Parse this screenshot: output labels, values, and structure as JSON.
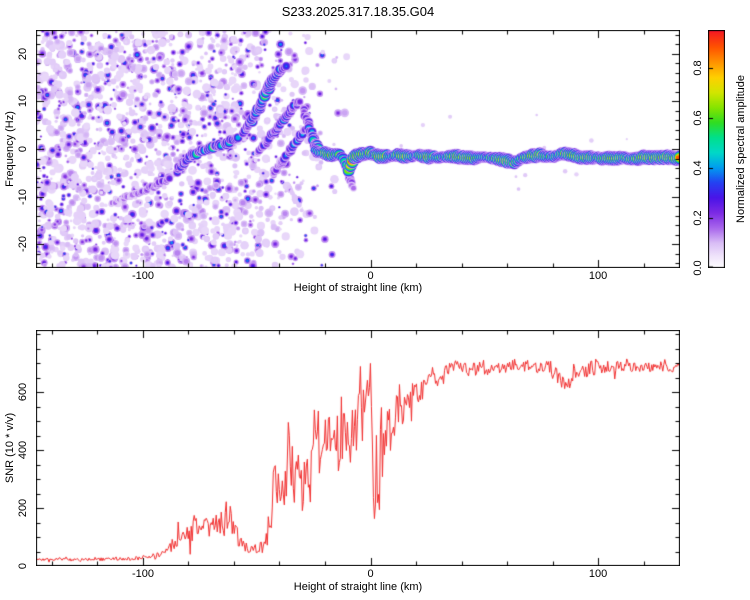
{
  "figure": {
    "title": "S233.2025.317.18.35.G04",
    "background": "#ffffff",
    "text_color": "#000000"
  },
  "chart_data": [
    {
      "type": "heatmap",
      "panel": "doppler-spectrogram",
      "xlabel": "Height of straight line (km)",
      "ylabel": "Frequency (Hz)",
      "xlim": [
        -147,
        136
      ],
      "ylim": [
        -25,
        25
      ],
      "x_major_ticks": [
        -100,
        0,
        100
      ],
      "x_minor_step": 20,
      "y_major_ticks": [
        -20,
        -10,
        0,
        10,
        20
      ],
      "y_minor_step": 2,
      "grid": false,
      "colorbar": {
        "label": "Normalized spectral amplitude",
        "ticks": [
          0.0,
          0.2,
          0.4,
          0.6,
          0.8
        ],
        "vmax_display": 0.95,
        "stops": [
          [
            0.0,
            "#ffffff"
          ],
          [
            0.05,
            "#efe2fb"
          ],
          [
            0.1,
            "#d9bdf6"
          ],
          [
            0.16,
            "#a866ec"
          ],
          [
            0.22,
            "#7c2ae4"
          ],
          [
            0.28,
            "#4a14e8"
          ],
          [
            0.34,
            "#2441f2"
          ],
          [
            0.4,
            "#009cf0"
          ],
          [
            0.46,
            "#00d8c8"
          ],
          [
            0.52,
            "#00e08c"
          ],
          [
            0.58,
            "#30dd22"
          ],
          [
            0.64,
            "#86e400"
          ],
          [
            0.7,
            "#d2e600"
          ],
          [
            0.76,
            "#ffd000"
          ],
          [
            0.82,
            "#ff9400"
          ],
          [
            0.88,
            "#ff5400"
          ],
          [
            0.94,
            "#f51e1e"
          ],
          [
            1.0,
            "#e6003c"
          ]
        ]
      },
      "noise_field": {
        "seed": 42,
        "count": 2400,
        "x_range": [
          -147,
          -8
        ],
        "x_full": -65,
        "x_zero": -8,
        "amp_max": 0.34,
        "sparse_seed": 9,
        "sparse_count": 14,
        "sparse_x_range": [
          -5,
          136
        ]
      },
      "trace_segments": [
        [
          [
            -114,
            -11.5,
            0.16
          ],
          [
            -107,
            -10,
            0.2
          ],
          [
            -100,
            -9,
            0.24
          ],
          [
            -94,
            -7.5,
            0.26
          ],
          [
            -88,
            -6,
            0.3
          ]
        ],
        [
          [
            -86,
            -5,
            0.34
          ],
          [
            -82,
            -3,
            0.44
          ],
          [
            -78,
            -1.2,
            0.52
          ],
          [
            -74,
            -0.3,
            0.58
          ],
          [
            -70,
            0.2,
            0.62
          ],
          [
            -66,
            0.8,
            0.5
          ],
          [
            -62,
            1.6,
            0.56
          ],
          [
            -58,
            2.6,
            0.46
          ]
        ],
        [
          [
            -56,
            3.4,
            0.42
          ],
          [
            -52,
            6,
            0.5
          ],
          [
            -49,
            8.5,
            0.55
          ],
          [
            -46.5,
            11,
            0.62
          ],
          [
            -44.5,
            13.2,
            0.66
          ],
          [
            -42.5,
            15,
            0.58
          ],
          [
            -40,
            16.4,
            0.48
          ],
          [
            -37.5,
            17.2,
            0.34
          ]
        ],
        [
          [
            -50,
            -1,
            0.26
          ],
          [
            -46,
            1.2,
            0.36
          ],
          [
            -42,
            3.8,
            0.46
          ],
          [
            -38,
            6.4,
            0.5
          ],
          [
            -34,
            8.6,
            0.42
          ],
          [
            -31,
            10.2,
            0.32
          ]
        ],
        [
          [
            -43,
            -5.5,
            0.22
          ],
          [
            -39,
            -2.8,
            0.3
          ],
          [
            -35,
            -0.2,
            0.38
          ],
          [
            -31.5,
            2.2,
            0.4
          ],
          [
            -29,
            4,
            0.34
          ]
        ],
        [
          [
            -29.5,
            8.5,
            0.3
          ],
          [
            -27.5,
            5.5,
            0.4
          ],
          [
            -25.5,
            2.5,
            0.48
          ],
          [
            -24,
            0.5,
            0.55
          ],
          [
            -23,
            -0.5,
            0.6
          ]
        ],
        [
          [
            -11.5,
            -2.5,
            0.38
          ],
          [
            -10,
            -4.5,
            0.36
          ],
          [
            -8.8,
            -6.8,
            0.28
          ],
          [
            -8,
            -8.2,
            0.2
          ]
        ],
        [
          [
            -36,
            -8,
            0.14
          ],
          [
            -33,
            -10.5,
            0.12
          ],
          [
            -30,
            -13,
            0.1
          ]
        ]
      ],
      "carrier": {
        "seed": 5,
        "x_range": [
          -24,
          136
        ],
        "freq_points": [
          [
            -24,
            -0.3
          ],
          [
            -20,
            -1.0
          ],
          [
            -17,
            -1.6
          ],
          [
            -14,
            -1.1
          ],
          [
            -12,
            -2.0
          ],
          [
            -10.5,
            -3.2
          ],
          [
            -9.5,
            -4.6
          ],
          [
            -8.5,
            -3.0
          ],
          [
            -7,
            -1.6
          ],
          [
            -4,
            -1.2
          ],
          [
            0,
            -1.0
          ],
          [
            4,
            -1.4
          ],
          [
            8,
            -1.8
          ],
          [
            12,
            -1.2
          ],
          [
            16,
            -1.6
          ],
          [
            20,
            -1.4
          ],
          [
            25,
            -1.6
          ],
          [
            30,
            -1.8
          ],
          [
            35,
            -1.4
          ],
          [
            40,
            -1.8
          ],
          [
            45,
            -2.0
          ],
          [
            50,
            -1.6
          ],
          [
            55,
            -2.0
          ],
          [
            60,
            -2.4
          ],
          [
            63,
            -2.8
          ],
          [
            66,
            -2.2
          ],
          [
            70,
            -1.5
          ],
          [
            74,
            -1.2
          ],
          [
            78,
            -1.6
          ],
          [
            82,
            -1.4
          ],
          [
            85,
            -1.0
          ],
          [
            88,
            -1.4
          ],
          [
            92,
            -1.8
          ],
          [
            96,
            -1.6
          ],
          [
            100,
            -1.8
          ],
          [
            105,
            -2.0
          ],
          [
            110,
            -1.8
          ],
          [
            115,
            -2.0
          ],
          [
            120,
            -1.8
          ],
          [
            125,
            -2.0
          ],
          [
            130,
            -1.9
          ],
          [
            136,
            -1.9
          ]
        ],
        "amp_points": [
          [
            -24,
            0.5
          ],
          [
            -21,
            0.72
          ],
          [
            -19,
            0.95
          ],
          [
            -16,
            0.82
          ],
          [
            -13,
            0.6
          ],
          [
            -11,
            0.52
          ],
          [
            -9,
            0.75
          ],
          [
            -8,
            0.92
          ],
          [
            -5,
            0.96
          ],
          [
            -2,
            0.8
          ],
          [
            0,
            0.9
          ],
          [
            2,
            0.72
          ],
          [
            4,
            0.95
          ],
          [
            7,
            0.9
          ],
          [
            9,
            0.58
          ],
          [
            12,
            0.8
          ],
          [
            15,
            0.95
          ],
          [
            18,
            0.72
          ],
          [
            20,
            0.6
          ],
          [
            23,
            0.85
          ],
          [
            26,
            0.95
          ],
          [
            29,
            0.68
          ],
          [
            32,
            0.6
          ],
          [
            35,
            0.8
          ],
          [
            38,
            0.95
          ],
          [
            42,
            0.9
          ],
          [
            45,
            0.95
          ],
          [
            48,
            0.68
          ],
          [
            51,
            0.6
          ],
          [
            54,
            0.75
          ],
          [
            57,
            0.9
          ],
          [
            60,
            0.95
          ],
          [
            63,
            0.78
          ],
          [
            66,
            0.65
          ],
          [
            69,
            0.8
          ],
          [
            72,
            0.95
          ],
          [
            75,
            0.88
          ],
          [
            78,
            0.68
          ],
          [
            81,
            0.64
          ],
          [
            84,
            0.75
          ],
          [
            87,
            0.9
          ],
          [
            90,
            0.95
          ],
          [
            93,
            0.84
          ],
          [
            96,
            0.9
          ],
          [
            99,
            0.7
          ],
          [
            102,
            0.85
          ],
          [
            105,
            0.95
          ],
          [
            108,
            0.9
          ],
          [
            111,
            0.78
          ],
          [
            114,
            0.7
          ],
          [
            117,
            0.85
          ],
          [
            120,
            0.95
          ],
          [
            124,
            0.9
          ],
          [
            128,
            0.96
          ],
          [
            132,
            0.9
          ],
          [
            135,
            0.96
          ]
        ]
      }
    },
    {
      "type": "line",
      "panel": "snr-profile",
      "xlabel": "Height of straight line (km)",
      "ylabel": "SNR (10 * v/v)",
      "xlim": [
        -147,
        136
      ],
      "ylim": [
        0,
        815
      ],
      "x_major_ticks": [
        -100,
        0,
        100
      ],
      "x_minor_step": 20,
      "y_major_ticks": [
        0,
        200,
        400,
        600
      ],
      "y_minor_step": 50,
      "grid": false,
      "line_color": "#f23030",
      "seed": 7,
      "envelope": [
        [
          -147,
          22,
          7
        ],
        [
          -130,
          22,
          7
        ],
        [
          -115,
          24,
          8
        ],
        [
          -105,
          26,
          9
        ],
        [
          -97,
          30,
          12
        ],
        [
          -92,
          38,
          16
        ],
        [
          -88,
          60,
          30
        ],
        [
          -84,
          95,
          45
        ],
        [
          -80,
          130,
          60
        ],
        [
          -77,
          120,
          55
        ],
        [
          -74,
          140,
          65
        ],
        [
          -71,
          120,
          55
        ],
        [
          -68,
          140,
          60
        ],
        [
          -65,
          160,
          75
        ],
        [
          -62,
          185,
          90
        ],
        [
          -60,
          130,
          60
        ],
        [
          -58,
          90,
          40
        ],
        [
          -55,
          65,
          25
        ],
        [
          -52,
          55,
          20
        ],
        [
          -49,
          58,
          22
        ],
        [
          -46,
          75,
          35
        ],
        [
          -44,
          150,
          90
        ],
        [
          -42,
          260,
          160
        ],
        [
          -40,
          310,
          180
        ],
        [
          -38,
          260,
          150
        ],
        [
          -36,
          330,
          180
        ],
        [
          -34,
          300,
          160
        ],
        [
          -32,
          330,
          170
        ],
        [
          -30,
          300,
          150
        ],
        [
          -28,
          330,
          160
        ],
        [
          -26,
          360,
          170
        ],
        [
          -24,
          400,
          180
        ],
        [
          -22,
          380,
          170
        ],
        [
          -20,
          420,
          180
        ],
        [
          -18,
          400,
          170
        ],
        [
          -16,
          440,
          170
        ],
        [
          -14,
          410,
          170
        ],
        [
          -12,
          470,
          160
        ],
        [
          -10,
          440,
          170
        ],
        [
          -8,
          490,
          150
        ],
        [
          -6,
          460,
          160
        ],
        [
          -4,
          520,
          140
        ],
        [
          -2,
          560,
          130
        ],
        [
          -1,
          620,
          110
        ],
        [
          0,
          720,
          50
        ],
        [
          0.7,
          420,
          250
        ],
        [
          1.5,
          180,
          90
        ],
        [
          2.5,
          420,
          180
        ],
        [
          3.5,
          300,
          140
        ],
        [
          5,
          480,
          130
        ],
        [
          6.5,
          420,
          140
        ],
        [
          8,
          520,
          110
        ],
        [
          10,
          480,
          120
        ],
        [
          12,
          560,
          90
        ],
        [
          14,
          530,
          100
        ],
        [
          16,
          590,
          80
        ],
        [
          18,
          560,
          90
        ],
        [
          20,
          620,
          60
        ],
        [
          22,
          600,
          70
        ],
        [
          25,
          640,
          50
        ],
        [
          28,
          655,
          45
        ],
        [
          31,
          670,
          40
        ],
        [
          35,
          680,
          35
        ],
        [
          40,
          690,
          32
        ],
        [
          45,
          685,
          32
        ],
        [
          50,
          690,
          30
        ],
        [
          55,
          688,
          30
        ],
        [
          60,
          692,
          30
        ],
        [
          65,
          686,
          32
        ],
        [
          70,
          690,
          30
        ],
        [
          75,
          684,
          32
        ],
        [
          80,
          678,
          35
        ],
        [
          84,
          648,
          40
        ],
        [
          87,
          636,
          40
        ],
        [
          90,
          665,
          36
        ],
        [
          94,
          680,
          32
        ],
        [
          100,
          690,
          30
        ],
        [
          106,
          688,
          30
        ],
        [
          112,
          692,
          28
        ],
        [
          118,
          688,
          30
        ],
        [
          124,
          692,
          28
        ],
        [
          130,
          690,
          28
        ],
        [
          136,
          690,
          28
        ]
      ]
    }
  ]
}
